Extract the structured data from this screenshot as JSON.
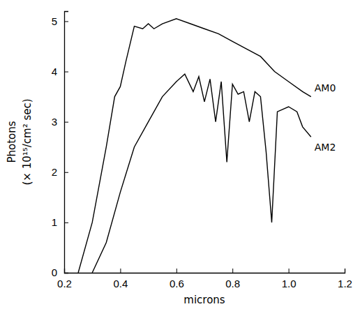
{
  "chart_data": {
    "type": "line",
    "x_label": "microns",
    "y_label": [
      "Photons",
      "(× 10¹⁵/cm² sec)"
    ],
    "xlim": [
      0.2,
      1.2
    ],
    "xticks": [
      0.2,
      0.4,
      0.6,
      0.8,
      {
        "value": 1,
        "label": "1.0"
      },
      1.2
    ],
    "ylim": [
      0,
      5.2
    ],
    "yticks": [
      0,
      1,
      2,
      3,
      4,
      5
    ],
    "grid": false,
    "series": [
      {
        "name": "AM0",
        "color": "#000000",
        "x": [
          0.25,
          0.3,
          0.35,
          0.38,
          0.4,
          0.42,
          0.45,
          0.48,
          0.5,
          0.52,
          0.55,
          0.6,
          0.65,
          0.7,
          0.75,
          0.8,
          0.85,
          0.9,
          0.95,
          1.0,
          1.05,
          1.08
        ],
        "values": [
          0,
          1.0,
          2.5,
          3.5,
          3.7,
          4.2,
          4.9,
          4.85,
          4.95,
          4.85,
          4.95,
          5.05,
          4.95,
          4.85,
          4.75,
          4.6,
          4.45,
          4.3,
          4.0,
          3.8,
          3.6,
          3.5
        ]
      },
      {
        "name": "AM2",
        "color": "#000000",
        "x": [
          0.3,
          0.35,
          0.4,
          0.45,
          0.5,
          0.55,
          0.6,
          0.63,
          0.66,
          0.68,
          0.7,
          0.72,
          0.74,
          0.76,
          0.78,
          0.8,
          0.82,
          0.84,
          0.86,
          0.88,
          0.9,
          0.92,
          0.94,
          0.96,
          1.0,
          1.03,
          1.05,
          1.08
        ],
        "values": [
          0,
          0.6,
          1.6,
          2.5,
          3.0,
          3.5,
          3.8,
          3.95,
          3.6,
          3.9,
          3.4,
          3.85,
          3.0,
          3.8,
          2.2,
          3.75,
          3.55,
          3.6,
          3.0,
          3.6,
          3.5,
          2.4,
          1.0,
          3.2,
          3.3,
          3.2,
          2.9,
          2.7
        ]
      }
    ]
  }
}
